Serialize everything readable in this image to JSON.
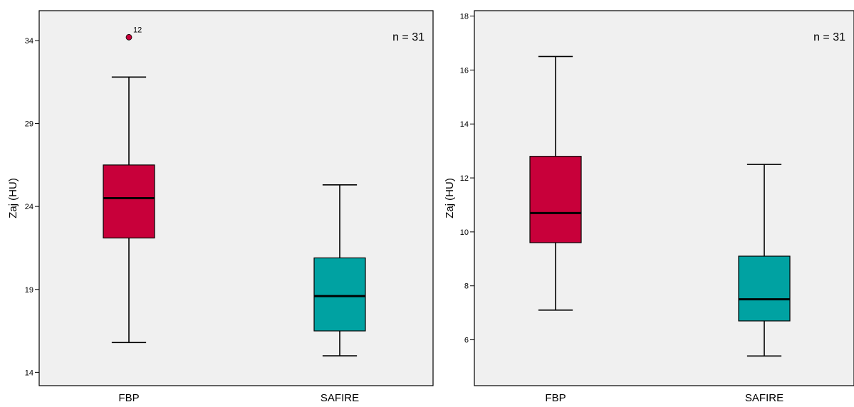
{
  "chart_data": [
    {
      "type": "boxplot",
      "ylabel": "Zaj (HU)",
      "ylim": [
        13.2,
        35.8
      ],
      "yticks": [
        14,
        19,
        24,
        29,
        34
      ],
      "annotation": "n = 31",
      "categories": [
        "FBP",
        "SAFIRE"
      ],
      "boxes": [
        {
          "category": "FBP",
          "color": "#c8003a",
          "min": 15.8,
          "q1": 22.1,
          "median": 24.5,
          "q3": 26.5,
          "max": 31.8,
          "outliers": [
            {
              "value": 34.2,
              "label": "12"
            }
          ]
        },
        {
          "category": "SAFIRE",
          "color": "#00a2a2",
          "min": 15.0,
          "q1": 16.5,
          "median": 18.6,
          "q3": 20.9,
          "max": 25.3,
          "outliers": []
        }
      ]
    },
    {
      "type": "boxplot",
      "ylabel": "Zaj (HU)",
      "ylim": [
        4.3,
        18.2
      ],
      "yticks": [
        6,
        8,
        10,
        12,
        14,
        16,
        18
      ],
      "annotation": "n = 31",
      "categories": [
        "FBP",
        "SAFIRE"
      ],
      "boxes": [
        {
          "category": "FBP",
          "color": "#c8003a",
          "min": 7.1,
          "q1": 9.6,
          "median": 10.7,
          "q3": 12.8,
          "max": 16.5,
          "outliers": []
        },
        {
          "category": "SAFIRE",
          "color": "#00a2a2",
          "min": 5.4,
          "q1": 6.7,
          "median": 7.5,
          "q3": 9.1,
          "max": 12.5,
          "outliers": []
        }
      ]
    }
  ]
}
